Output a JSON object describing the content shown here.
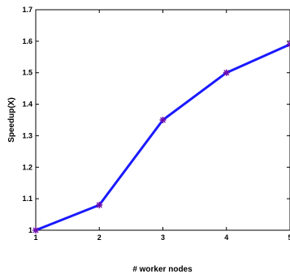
{
  "chart_data": {
    "type": "line",
    "xlabel": "# worker nodes",
    "ylabel": "Speedup(X)",
    "x": [
      1,
      2,
      3,
      4,
      5
    ],
    "xlim": [
      1,
      5
    ],
    "ylim": [
      1,
      1.7
    ],
    "x_ticks": [
      "1",
      "2",
      "3",
      "4",
      "5"
    ],
    "y_ticks": [
      "1",
      "1.1",
      "1.2",
      "1.3",
      "1.4",
      "1.5",
      "1.6",
      "1.7"
    ],
    "grid": false,
    "series": [
      {
        "values": [
          1.0,
          1.08,
          1.35,
          1.5,
          1.59
        ],
        "color": "#1a1aff",
        "marker_color": "#6a0dad"
      }
    ]
  }
}
